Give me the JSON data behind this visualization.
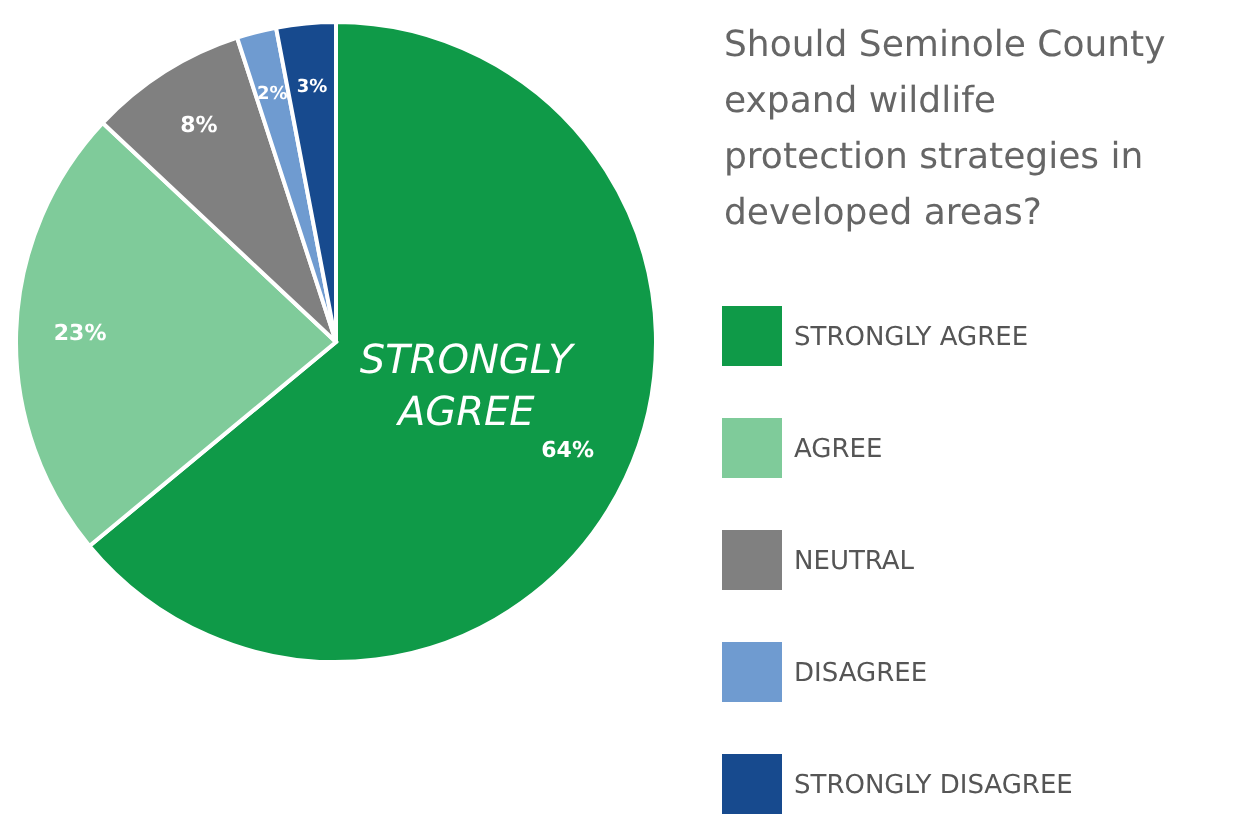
{
  "chart_data": {
    "type": "pie",
    "title": "Should Seminole County expand wildlife protection strategies in developed areas?",
    "categories": [
      "STRONGLY AGREE",
      "AGREE",
      "NEUTRAL",
      "DISAGREE",
      "STRONGLY DISAGREE"
    ],
    "values": [
      64,
      23,
      8,
      2,
      3
    ],
    "colors": [
      "#0f9a48",
      "#7fcb9a",
      "#808080",
      "#6f9bd0",
      "#174a8e"
    ],
    "value_labels": [
      "64%",
      "23%",
      "8%",
      "2%",
      "3%"
    ],
    "annotations": [
      "STRONGLY AGREE"
    ],
    "legend": "right"
  }
}
